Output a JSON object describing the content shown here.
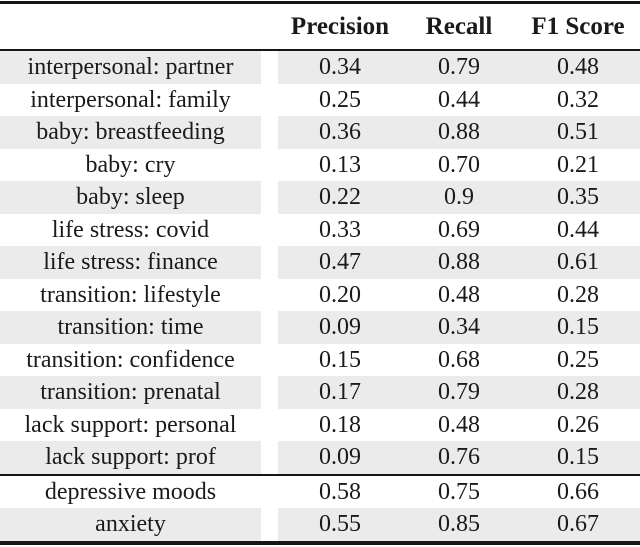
{
  "table": {
    "header": {
      "label": "",
      "precision": "Precision",
      "recall": "Recall",
      "f1": "F1 Score"
    },
    "sections": [
      {
        "rows": [
          {
            "label": "interpersonal: partner",
            "precision": "0.34",
            "recall": "0.79",
            "f1": "0.48"
          },
          {
            "label": "interpersonal: family",
            "precision": "0.25",
            "recall": "0.44",
            "f1": "0.32"
          },
          {
            "label": "baby: breastfeeding",
            "precision": "0.36",
            "recall": "0.88",
            "f1": "0.51"
          },
          {
            "label": "baby: cry",
            "precision": "0.13",
            "recall": "0.70",
            "f1": "0.21"
          },
          {
            "label": "baby: sleep",
            "precision": "0.22",
            "recall": "0.9",
            "f1": "0.35"
          },
          {
            "label": "life stress: covid",
            "precision": "0.33",
            "recall": "0.69",
            "f1": "0.44"
          },
          {
            "label": "life stress: finance",
            "precision": "0.47",
            "recall": "0.88",
            "f1": "0.61"
          },
          {
            "label": "transition: lifestyle",
            "precision": "0.20",
            "recall": "0.48",
            "f1": "0.28"
          },
          {
            "label": "transition: time",
            "precision": "0.09",
            "recall": "0.34",
            "f1": "0.15"
          },
          {
            "label": "transition: confidence",
            "precision": "0.15",
            "recall": "0.68",
            "f1": "0.25"
          },
          {
            "label": "transition: prenatal",
            "precision": "0.17",
            "recall": "0.79",
            "f1": "0.28"
          },
          {
            "label": "lack support: personal",
            "precision": "0.18",
            "recall": "0.48",
            "f1": "0.26"
          },
          {
            "label": "lack support: prof",
            "precision": "0.09",
            "recall": "0.76",
            "f1": "0.15"
          }
        ]
      },
      {
        "rows": [
          {
            "label": "depressive moods",
            "precision": "0.58",
            "recall": "0.75",
            "f1": "0.66"
          },
          {
            "label": "anxiety",
            "precision": "0.55",
            "recall": "0.85",
            "f1": "0.67"
          }
        ]
      }
    ],
    "colors": {
      "stripe": "#ebebeb",
      "rule": "#161616",
      "text": "#1a1a1a"
    }
  }
}
